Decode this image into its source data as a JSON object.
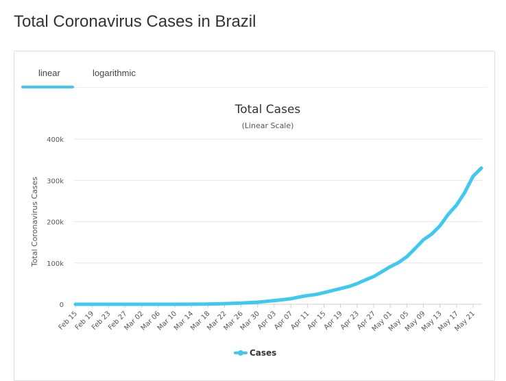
{
  "page": {
    "title": "Total Coronavirus Cases in Brazil"
  },
  "tabs": [
    {
      "label": "linear",
      "active": true
    },
    {
      "label": "logarithmic",
      "active": false
    }
  ],
  "colors": {
    "accent": "#3fc8f0",
    "series": "#3fc8f0",
    "grid": "#e6e6e6"
  },
  "chart_data": {
    "type": "line",
    "title": "Total Cases",
    "subtitle": "(Linear Scale)",
    "ylabel": "Total Coronavirus Cases",
    "xlabel": "",
    "ylim": [
      0,
      400000
    ],
    "yticks": [
      0,
      100000,
      200000,
      300000,
      400000
    ],
    "ytick_labels": [
      "0",
      "100k",
      "200k",
      "300k",
      "400k"
    ],
    "xtick_labels": [
      "Feb 15",
      "Feb 19",
      "Feb 23",
      "Feb 27",
      "Mar 02",
      "Mar 06",
      "Mar 10",
      "Mar 14",
      "Mar 18",
      "Mar 22",
      "Mar 26",
      "Mar 30",
      "Apr 03",
      "Apr 07",
      "Apr 11",
      "Apr 15",
      "Apr 19",
      "Apr 23",
      "Apr 27",
      "May 01",
      "May 05",
      "May 09",
      "May 13",
      "May 17",
      "May 21"
    ],
    "grid": true,
    "legend": "bottom-center",
    "series": [
      {
        "name": "Cases",
        "x": [
          "Feb 15",
          "Feb 19",
          "Feb 23",
          "Feb 27",
          "Mar 02",
          "Mar 06",
          "Mar 10",
          "Mar 14",
          "Mar 18",
          "Mar 22",
          "Mar 26",
          "Mar 30",
          "Apr 03",
          "Apr 05",
          "Apr 07",
          "Apr 09",
          "Apr 11",
          "Apr 13",
          "Apr 15",
          "Apr 17",
          "Apr 19",
          "Apr 21",
          "Apr 23",
          "Apr 25",
          "Apr 27",
          "Apr 29",
          "May 01",
          "May 03",
          "May 05",
          "May 07",
          "May 09",
          "May 11",
          "May 13",
          "May 15",
          "May 17",
          "May 19",
          "May 21",
          "May 23"
        ],
        "values": [
          0,
          0,
          0,
          0,
          2,
          13,
          30,
          200,
          500,
          1500,
          3000,
          5000,
          9000,
          11000,
          13500,
          17500,
          21000,
          23500,
          28000,
          33000,
          38000,
          43000,
          50000,
          59000,
          67000,
          79000,
          91000,
          101000,
          115000,
          135000,
          156000,
          170000,
          190000,
          218000,
          240000,
          271000,
          310000,
          330000
        ]
      }
    ]
  }
}
